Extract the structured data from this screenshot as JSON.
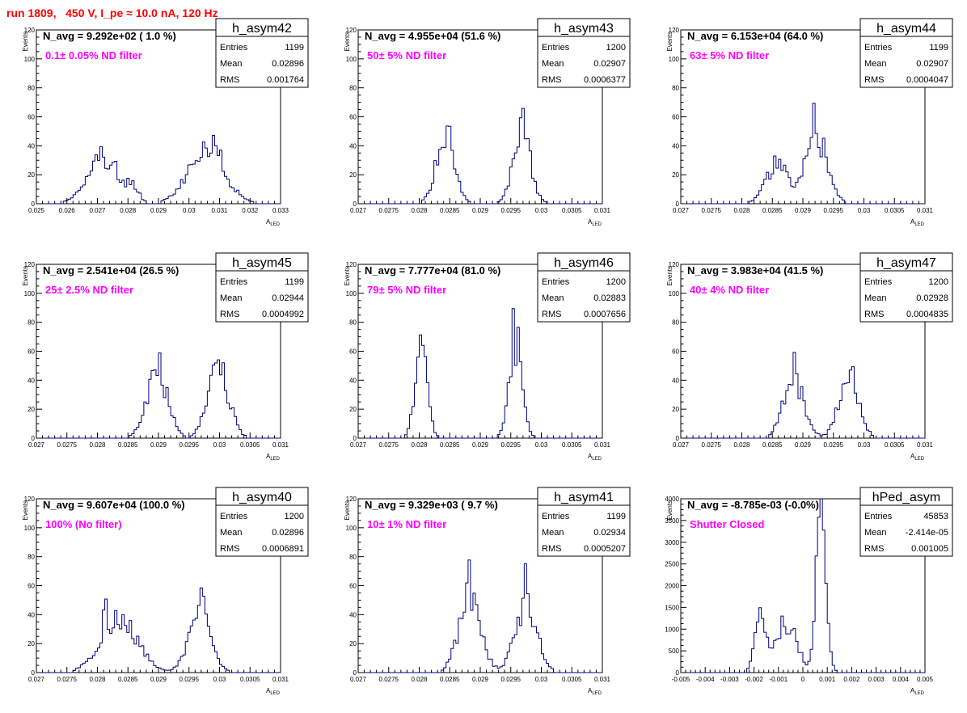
{
  "canvas_title": "run 1809,   450 V, I_pe ≈ 10.0 nA, 120 Hz",
  "colors": {
    "histogram": "#000080",
    "annotation": "#ff00ff",
    "title": "#ff0000",
    "axis": "#000000"
  },
  "stats_labels": {
    "entries": "Entries",
    "mean": "Mean",
    "rms": "RMS"
  },
  "axis_labels": {
    "y": "Events",
    "x_main": "A",
    "x_sub": "LED"
  },
  "chart_data": [
    {
      "type": "bar",
      "name": "h_asym42",
      "navg": "N_avg = 9.292e+02 ( 1.0 %)",
      "filter": "0.1± 0.05% ND filter",
      "entries": "1199",
      "mean": "0.02896",
      "rms": "0.001764",
      "xlim": [
        0.025,
        0.033
      ],
      "ylim": [
        0,
        120
      ],
      "xticks": [
        "0.025",
        "0.026",
        "0.027",
        "0.028",
        "0.029",
        "0.03",
        "0.031",
        "0.032",
        "0.033"
      ],
      "yticks": [
        "0",
        "20",
        "40",
        "60",
        "80",
        "100",
        "120"
      ],
      "peaks": [
        [
          0.02715,
          0.0005,
          32
        ],
        [
          0.02815,
          0.0002,
          10
        ],
        [
          0.03055,
          0.0006,
          36
        ],
        [
          0.03085,
          0.00015,
          8
        ]
      ],
      "spikes": [
        [
          0.02712,
          34
        ],
        [
          0.02758,
          33
        ],
        [
          0.03082,
          46
        ],
        [
          0.03108,
          36
        ]
      ]
    },
    {
      "type": "bar",
      "name": "h_asym43",
      "navg": "N_avg = 4.955e+04 (51.6 %)",
      "filter": "50± 5% ND filter",
      "entries": "1200",
      "mean": "0.02907",
      "rms": "0.0006377",
      "xlim": [
        0.027,
        0.031
      ],
      "ylim": [
        0,
        120
      ],
      "xticks": [
        "0.027",
        "0.0275",
        "0.028",
        "0.0285",
        "0.029",
        "0.0295",
        "0.03",
        "0.0305",
        "0.031"
      ],
      "yticks": [
        "0",
        "20",
        "40",
        "60",
        "80",
        "100",
        "120"
      ],
      "peaks": [
        [
          0.02843,
          0.00015,
          48
        ],
        [
          0.02968,
          0.00014,
          50
        ]
      ],
      "spikes": [
        [
          0.0285,
          56
        ],
        [
          0.02968,
          56
        ]
      ]
    },
    {
      "type": "bar",
      "name": "h_asym44",
      "navg": "N_avg = 6.153e+04 (64.0 %)",
      "filter": "63± 5% ND filter",
      "entries": "1199",
      "mean": "0.02907",
      "rms": "0.0004047",
      "xlim": [
        0.027,
        0.031
      ],
      "ylim": [
        0,
        120
      ],
      "xticks": [
        "0.027",
        "0.0275",
        "0.028",
        "0.0285",
        "0.029",
        "0.0295",
        "0.03",
        "0.0305",
        "0.031"
      ],
      "yticks": [
        "0",
        "20",
        "40",
        "60",
        "80",
        "100",
        "120"
      ],
      "peaks": [
        [
          0.02858,
          0.00018,
          27
        ],
        [
          0.02922,
          0.00018,
          45
        ]
      ],
      "spikes": [
        [
          0.0292,
          57
        ],
        [
          0.02935,
          54
        ],
        [
          0.02855,
          36
        ]
      ]
    },
    {
      "type": "bar",
      "name": "h_asym45",
      "navg": "N_avg = 2.541e+04 (26.5 %)",
      "filter": "25± 2.5% ND filter",
      "entries": "1199",
      "mean": "0.02944",
      "rms": "0.0004992",
      "xlim": [
        0.027,
        0.031
      ],
      "ylim": [
        0,
        120
      ],
      "xticks": [
        "0.027",
        "0.0275",
        "0.028",
        "0.0285",
        "0.029",
        "0.0295",
        "0.03",
        "0.0305",
        "0.031"
      ],
      "yticks": [
        "0",
        "20",
        "40",
        "60",
        "80",
        "100",
        "120"
      ],
      "peaks": [
        [
          0.02898,
          0.00017,
          46
        ],
        [
          0.02998,
          0.00017,
          48
        ]
      ],
      "spikes": [
        [
          0.029,
          56
        ],
        [
          0.0299,
          56
        ]
      ]
    },
    {
      "type": "bar",
      "name": "h_asym46",
      "navg": "N_avg = 7.777e+04 (81.0 %)",
      "filter": "79± 5% ND filter",
      "entries": "1200",
      "mean": "0.02883",
      "rms": "0.0007656",
      "xlim": [
        0.027,
        0.031
      ],
      "ylim": [
        0,
        120
      ],
      "xticks": [
        "0.027",
        "0.0275",
        "0.028",
        "0.0285",
        "0.029",
        "0.0295",
        "0.03",
        "0.0305",
        "0.031"
      ],
      "yticks": [
        "0",
        "20",
        "40",
        "60",
        "80",
        "100",
        "120"
      ],
      "peaks": [
        [
          0.02803,
          0.0001,
          60
        ],
        [
          0.02958,
          0.00011,
          62
        ]
      ],
      "spikes": [
        [
          0.02798,
          71
        ],
        [
          0.02808,
          71
        ],
        [
          0.02955,
          74
        ],
        [
          0.02962,
          64
        ]
      ]
    },
    {
      "type": "bar",
      "name": "h_asym47",
      "navg": "N_avg = 3.983e+04 (41.5 %)",
      "filter": "40± 4% ND filter",
      "entries": "1200",
      "mean": "0.02928",
      "rms": "0.0004835",
      "xlim": [
        0.027,
        0.031
      ],
      "ylim": [
        0,
        120
      ],
      "xticks": [
        "0.027",
        "0.0275",
        "0.028",
        "0.0285",
        "0.029",
        "0.0295",
        "0.03",
        "0.0305",
        "0.031"
      ],
      "yticks": [
        "0",
        "20",
        "40",
        "60",
        "80",
        "100",
        "120"
      ],
      "peaks": [
        [
          0.02885,
          0.00017,
          40
        ],
        [
          0.02975,
          0.00016,
          42
        ]
      ],
      "spikes": [
        [
          0.02885,
          52
        ],
        [
          0.0298,
          56
        ]
      ]
    },
    {
      "type": "bar",
      "name": "h_asym40",
      "navg": "N_avg = 9.607e+04 (100.0 %)",
      "filter": "100% (No filter)",
      "entries": "1200",
      "mean": "0.02896",
      "rms": "0.0006891",
      "xlim": [
        0.027,
        0.031
      ],
      "ylim": [
        0,
        120
      ],
      "xticks": [
        "0.027",
        "0.0275",
        "0.028",
        "0.0285",
        "0.029",
        "0.0295",
        "0.03",
        "0.0305",
        "0.031"
      ],
      "yticks": [
        "0",
        "20",
        "40",
        "60",
        "80",
        "100",
        "120"
      ],
      "peaks": [
        [
          0.02835,
          0.0003,
          36
        ],
        [
          0.02968,
          0.00018,
          42
        ]
      ],
      "spikes": [
        [
          0.02812,
          45
        ],
        [
          0.02968,
          55
        ],
        [
          0.02975,
          56
        ],
        [
          0.02855,
          43
        ]
      ]
    },
    {
      "type": "bar",
      "name": "h_asym41",
      "navg": "N_avg = 9.329e+03 ( 9.7 %)",
      "filter": "10± 1% ND filter",
      "entries": "1199",
      "mean": "0.02934",
      "rms": "0.0005207",
      "xlim": [
        0.027,
        0.031
      ],
      "ylim": [
        0,
        120
      ],
      "xticks": [
        "0.027",
        "0.0275",
        "0.028",
        "0.0285",
        "0.029",
        "0.0295",
        "0.03",
        "0.0305",
        "0.031"
      ],
      "yticks": [
        "0",
        "20",
        "40",
        "60",
        "80",
        "100",
        "120"
      ],
      "peaks": [
        [
          0.02883,
          0.00018,
          50
        ],
        [
          0.02975,
          0.00018,
          46
        ]
      ],
      "spikes": [
        [
          0.0288,
          67
        ],
        [
          0.02975,
          67
        ]
      ]
    },
    {
      "type": "bar",
      "name": "hPed_asym",
      "navg": "N_avg = -8.785e-03 (-0.0%)",
      "filter": "Shutter Closed",
      "entries": "45853",
      "mean": "-2.414e-05",
      "rms": "0.001005",
      "xlim": [
        -0.005,
        0.005
      ],
      "ylim": [
        0,
        4000
      ],
      "xticks": [
        "-0.005",
        "-0.004",
        "-0.003",
        "-0.002",
        "-0.001",
        "0",
        "0.001",
        "0.002",
        "0.003",
        "0.004",
        "0.005"
      ],
      "yticks": [
        "0",
        "500",
        "1000",
        "1500",
        "2000",
        "2500",
        "3000",
        "3500",
        "4000"
      ],
      "peaks": [
        [
          -0.00175,
          0.00022,
          1300
        ],
        [
          -0.0009,
          0.0003,
          850
        ],
        [
          -0.0004,
          0.0003,
          750
        ],
        [
          0.00075,
          0.0002,
          3900
        ]
      ],
      "spikes": [
        [
          0.0007,
          3900
        ],
        [
          0.0009,
          3800
        ]
      ]
    }
  ]
}
